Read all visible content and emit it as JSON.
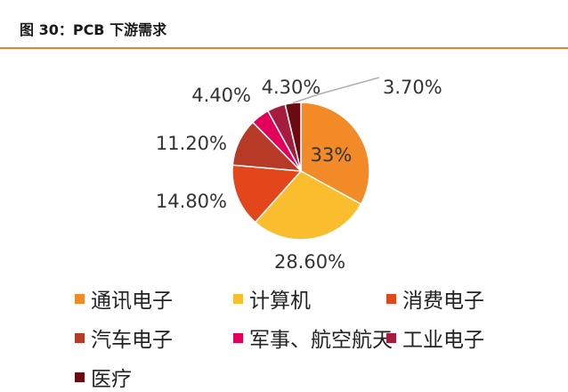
{
  "header": {
    "title": "图 30：PCB 下游需求"
  },
  "chart_data": {
    "type": "pie",
    "title": "",
    "slices": [
      {
        "name": "通讯电子",
        "value": 33,
        "label": "33%",
        "color": "#f28a27"
      },
      {
        "name": "计算机",
        "value": 28.6,
        "label": "28.60%",
        "color": "#f9bd2e"
      },
      {
        "name": "消费电子",
        "value": 14.8,
        "label": "14.80%",
        "color": "#e4461c"
      },
      {
        "name": "汽车电子",
        "value": 11.2,
        "label": "11.20%",
        "color": "#b73a26"
      },
      {
        "name": "军事、航空航天",
        "value": 4.4,
        "label": "4.40%",
        "color": "#e3005a"
      },
      {
        "name": "工业电子",
        "value": 4.3,
        "label": "4.30%",
        "color": "#a51c3e"
      },
      {
        "name": "医疗",
        "value": 3.7,
        "label": "3.70%",
        "color": "#6b0a10"
      }
    ],
    "legend_position": "bottom"
  }
}
